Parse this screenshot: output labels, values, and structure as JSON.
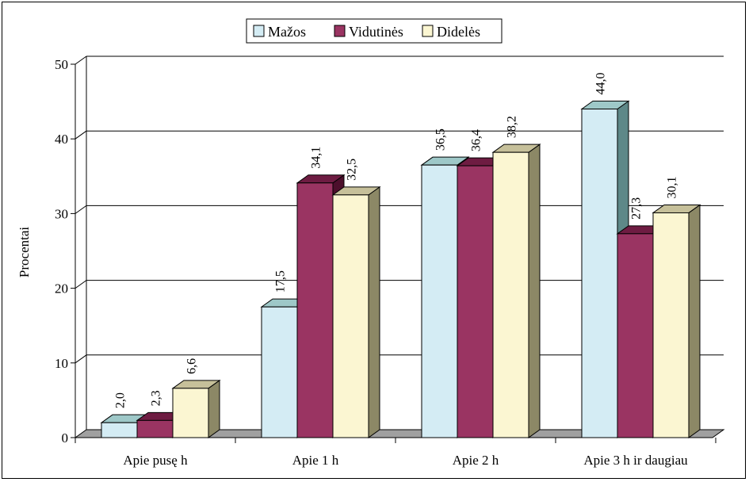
{
  "chart_data": {
    "type": "bar",
    "title": "",
    "ylabel": "Procentai",
    "xlabel": "",
    "ylim": [
      0,
      50
    ],
    "yticks": [
      "0",
      "10",
      "20",
      "30",
      "40",
      "50"
    ],
    "grid": true,
    "legend": "top-center",
    "categories": [
      "Apie pusę h",
      "Apie 1 h",
      "Apie 2 h",
      "Apie 3 h ir daugiau"
    ],
    "series": [
      {
        "name": "Mažos",
        "values": [
          2.0,
          17.5,
          36.5,
          44.0
        ],
        "labels": [
          "2,0",
          "17,5",
          "36,5",
          "44,0"
        ],
        "color": "#d4ecf4",
        "top_color": "#9ec8c8",
        "side_color": "#5e8888"
      },
      {
        "name": "Vidutinės",
        "values": [
          2.3,
          34.1,
          36.4,
          27.3
        ],
        "labels": [
          "2,3",
          "34,1",
          "36,4",
          "27,3"
        ],
        "color": "#9a3462",
        "top_color": "#6e1c42",
        "side_color": "#4c0f2c"
      },
      {
        "name": "Didelės",
        "values": [
          6.6,
          32.5,
          38.2,
          30.1
        ],
        "labels": [
          "6,6",
          "32,5",
          "38,2",
          "30,1"
        ],
        "color": "#fbf6d2",
        "top_color": "#c6c09a",
        "side_color": "#8c8866"
      }
    ],
    "floor_color": "#a0a0a0"
  }
}
